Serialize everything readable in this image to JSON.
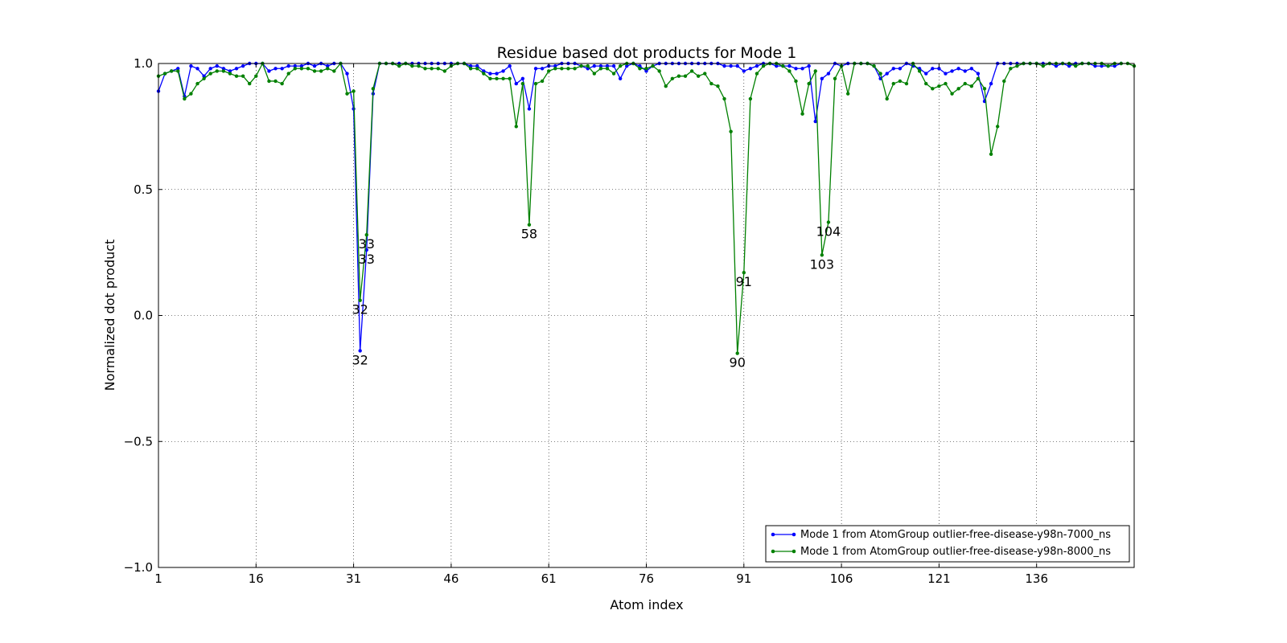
{
  "chart_data": {
    "type": "line",
    "title": "Residue based dot products for Mode 1",
    "xlabel": "Atom index",
    "ylabel": "Normalized dot product",
    "xlim": [
      1,
      151
    ],
    "ylim": [
      -1.0,
      1.0
    ],
    "xticks": [
      1,
      16,
      31,
      46,
      61,
      76,
      91,
      106,
      121,
      136
    ],
    "yticks": [
      -1.0,
      -0.5,
      0.0,
      0.5,
      1.0
    ],
    "ytick_labels": [
      "−1.0",
      "−0.5",
      "0.0",
      "0.5",
      "1.0"
    ],
    "grid": true,
    "legend_position": "lower-right",
    "x_start": 1,
    "series": [
      {
        "name": "Mode 1 from AtomGroup outlier-free-disease-y98n-7000_ns",
        "color": "#0000ff",
        "values": [
          0.89,
          0.96,
          0.97,
          0.98,
          0.87,
          0.99,
          0.98,
          0.95,
          0.98,
          0.99,
          0.98,
          0.97,
          0.98,
          0.99,
          1.0,
          1.0,
          1.0,
          0.97,
          0.98,
          0.98,
          0.99,
          0.99,
          0.99,
          1.0,
          0.99,
          1.0,
          0.99,
          1.0,
          1.0,
          0.96,
          0.82,
          -0.14,
          0.26,
          0.88,
          1.0,
          1.0,
          1.0,
          1.0,
          1.0,
          1.0,
          1.0,
          1.0,
          1.0,
          1.0,
          1.0,
          1.0,
          1.0,
          1.0,
          0.99,
          0.99,
          0.97,
          0.96,
          0.96,
          0.97,
          0.99,
          0.92,
          0.94,
          0.82,
          0.98,
          0.98,
          0.99,
          0.99,
          1.0,
          1.0,
          1.0,
          0.99,
          0.98,
          0.99,
          0.99,
          0.99,
          0.99,
          0.94,
          0.99,
          1.0,
          0.99,
          0.97,
          0.99,
          1.0,
          1.0,
          1.0,
          1.0,
          1.0,
          1.0,
          1.0,
          1.0,
          1.0,
          1.0,
          0.99,
          0.99,
          0.99,
          0.97,
          0.98,
          0.99,
          1.0,
          1.0,
          0.99,
          0.99,
          0.99,
          0.98,
          0.98,
          0.99,
          0.77,
          0.94,
          0.96,
          1.0,
          0.99,
          1.0,
          1.0,
          1.0,
          1.0,
          0.99,
          0.94,
          0.96,
          0.98,
          0.98,
          1.0,
          0.99,
          0.98,
          0.96,
          0.98,
          0.98,
          0.96,
          0.97,
          0.98,
          0.97,
          0.98,
          0.96,
          0.85,
          0.92,
          1.0,
          1.0,
          1.0,
          1.0,
          1.0,
          1.0,
          1.0,
          1.0,
          1.0,
          0.99,
          1.0,
          0.99,
          1.0,
          1.0,
          1.0,
          0.99,
          0.99,
          0.99,
          0.99,
          1.0
        ]
      },
      {
        "name": "Mode 1 from AtomGroup outlier-free-disease-y98n-8000_ns",
        "color": "#008000",
        "values": [
          0.95,
          0.96,
          0.97,
          0.97,
          0.86,
          0.88,
          0.92,
          0.94,
          0.96,
          0.97,
          0.97,
          0.96,
          0.95,
          0.95,
          0.92,
          0.95,
          1.0,
          0.93,
          0.93,
          0.92,
          0.96,
          0.98,
          0.98,
          0.98,
          0.97,
          0.97,
          0.98,
          0.97,
          1.0,
          0.88,
          0.89,
          0.06,
          0.32,
          0.9,
          1.0,
          1.0,
          1.0,
          0.99,
          1.0,
          0.99,
          0.99,
          0.98,
          0.98,
          0.98,
          0.97,
          0.99,
          1.0,
          1.0,
          0.98,
          0.98,
          0.96,
          0.94,
          0.94,
          0.94,
          0.94,
          0.75,
          0.92,
          0.36,
          0.92,
          0.93,
          0.97,
          0.98,
          0.98,
          0.98,
          0.98,
          0.99,
          0.99,
          0.96,
          0.98,
          0.98,
          0.96,
          0.99,
          1.0,
          1.0,
          0.98,
          0.98,
          0.99,
          0.97,
          0.91,
          0.94,
          0.95,
          0.95,
          0.97,
          0.95,
          0.96,
          0.92,
          0.91,
          0.86,
          0.73,
          -0.15,
          0.17,
          0.86,
          0.96,
          0.99,
          1.0,
          1.0,
          0.99,
          0.97,
          0.93,
          0.8,
          0.92,
          0.97,
          0.24,
          0.37,
          0.94,
          0.99,
          0.88,
          1.0,
          1.0,
          1.0,
          0.99,
          0.96,
          0.86,
          0.92,
          0.93,
          0.92,
          1.0,
          0.97,
          0.92,
          0.9,
          0.91,
          0.92,
          0.88,
          0.9,
          0.92,
          0.91,
          0.94,
          0.9,
          0.64,
          0.75,
          0.93,
          0.98,
          0.99,
          1.0,
          1.0,
          1.0,
          0.99,
          1.0,
          1.0,
          1.0,
          1.0,
          0.99,
          1.0,
          1.0,
          1.0,
          1.0,
          0.99,
          1.0,
          1.0,
          1.0,
          0.99
        ]
      }
    ],
    "annotations": [
      {
        "text": "32",
        "x": 32,
        "y": -0.14
      },
      {
        "text": "33",
        "x": 33,
        "y": 0.26
      },
      {
        "text": "32",
        "x": 32,
        "y": 0.06
      },
      {
        "text": "33",
        "x": 33,
        "y": 0.32
      },
      {
        "text": "58",
        "x": 58,
        "y": 0.36
      },
      {
        "text": "90",
        "x": 90,
        "y": -0.15
      },
      {
        "text": "91",
        "x": 91,
        "y": 0.17
      },
      {
        "text": "103",
        "x": 103,
        "y": 0.24
      },
      {
        "text": "104",
        "x": 104,
        "y": 0.37
      }
    ]
  }
}
